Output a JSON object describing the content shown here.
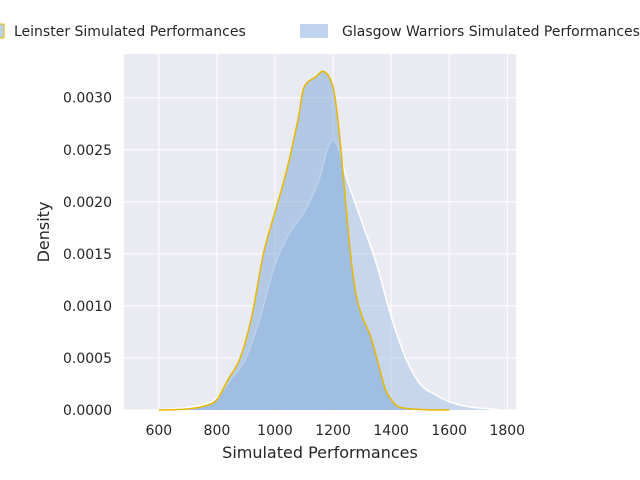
{
  "chart_data": {
    "type": "area",
    "title": "",
    "xlabel": "Simulated Performances",
    "ylabel": "Density",
    "xlim": [
      480,
      1830
    ],
    "ylim": [
      0,
      0.00342
    ],
    "xticks": [
      600,
      800,
      1000,
      1200,
      1400,
      1600,
      1800
    ],
    "xtick_labels": [
      "600",
      "800",
      "1000",
      "1200",
      "1400",
      "1600",
      "1800"
    ],
    "yticks": [
      0,
      0.0005,
      0.001,
      0.0015,
      0.002,
      0.0025,
      0.003
    ],
    "ytick_labels": [
      "0.0000",
      "0.0005",
      "0.0010",
      "0.0015",
      "0.0020",
      "0.0025",
      "0.0030"
    ],
    "grid": true,
    "background": "#eaeaf2",
    "legend": {
      "position": "top",
      "ncol": 2
    },
    "series": [
      {
        "name": "Leinster Simulated Performances",
        "fill": "#7aa6d6",
        "fill_opacity": 0.5,
        "stroke": "#e6b800",
        "x": [
          600,
          700,
          760,
          800,
          840,
          880,
          920,
          960,
          1000,
          1040,
          1080,
          1100,
          1140,
          1170,
          1200,
          1220,
          1240,
          1260,
          1280,
          1300,
          1330,
          1360,
          1380,
          1400,
          1420,
          1440,
          1470,
          1500,
          1550,
          1600
        ],
        "y": [
          0,
          1e-05,
          4e-05,
          0.0001,
          0.0003,
          0.0005,
          0.0009,
          0.0015,
          0.0019,
          0.0023,
          0.0028,
          0.0031,
          0.0032,
          0.00325,
          0.0031,
          0.0027,
          0.0021,
          0.0015,
          0.0011,
          0.0009,
          0.0007,
          0.0004,
          0.0002,
          0.0001,
          4e-05,
          2e-05,
          1e-05,
          5e-06,
          0,
          0
        ]
      },
      {
        "name": "Glasgow Warriors Simulated Performances",
        "fill": "#a9c4e8",
        "fill_opacity": 0.55,
        "stroke": "#ffffff",
        "x": [
          550,
          650,
          750,
          800,
          850,
          900,
          950,
          1000,
          1050,
          1100,
          1150,
          1180,
          1200,
          1220,
          1250,
          1300,
          1350,
          1400,
          1450,
          1500,
          1550,
          1600,
          1650,
          1700,
          1750,
          1780
        ],
        "y": [
          0,
          1e-05,
          5e-05,
          0.00012,
          0.0003,
          0.0005,
          0.0009,
          0.0014,
          0.0017,
          0.0019,
          0.0022,
          0.0025,
          0.0026,
          0.0025,
          0.0022,
          0.0018,
          0.0014,
          0.0009,
          0.0005,
          0.00025,
          0.00015,
          8e-05,
          4e-05,
          2e-05,
          1e-05,
          0
        ]
      }
    ]
  }
}
